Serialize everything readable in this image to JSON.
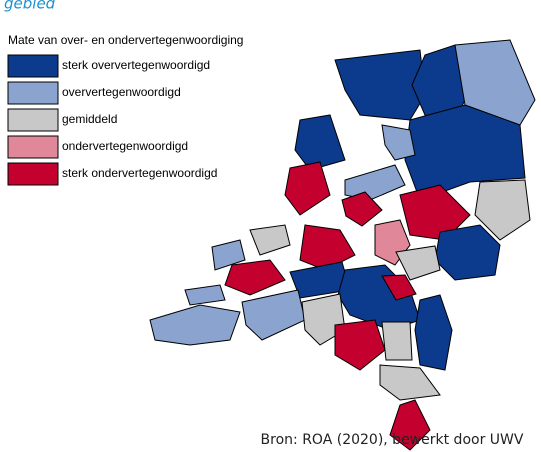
{
  "header": {
    "title": "gebied"
  },
  "legend": {
    "title": "Mate van over- en ondervertegenwoordiging",
    "items": [
      {
        "label": "sterk oververtegenwoordigd",
        "color": "#0c3a8c"
      },
      {
        "label": "oververtegenwoordigd",
        "color": "#8aa3cf"
      },
      {
        "label": "gemiddeld",
        "color": "#c8c8c8"
      },
      {
        "label": "ondervertegenwoordigd",
        "color": "#e0879a"
      },
      {
        "label": "sterk ondervertegenwoordigd",
        "color": "#c4002f"
      }
    ]
  },
  "source": "Bron: ROA (2020), bewerkt door UWV"
}
